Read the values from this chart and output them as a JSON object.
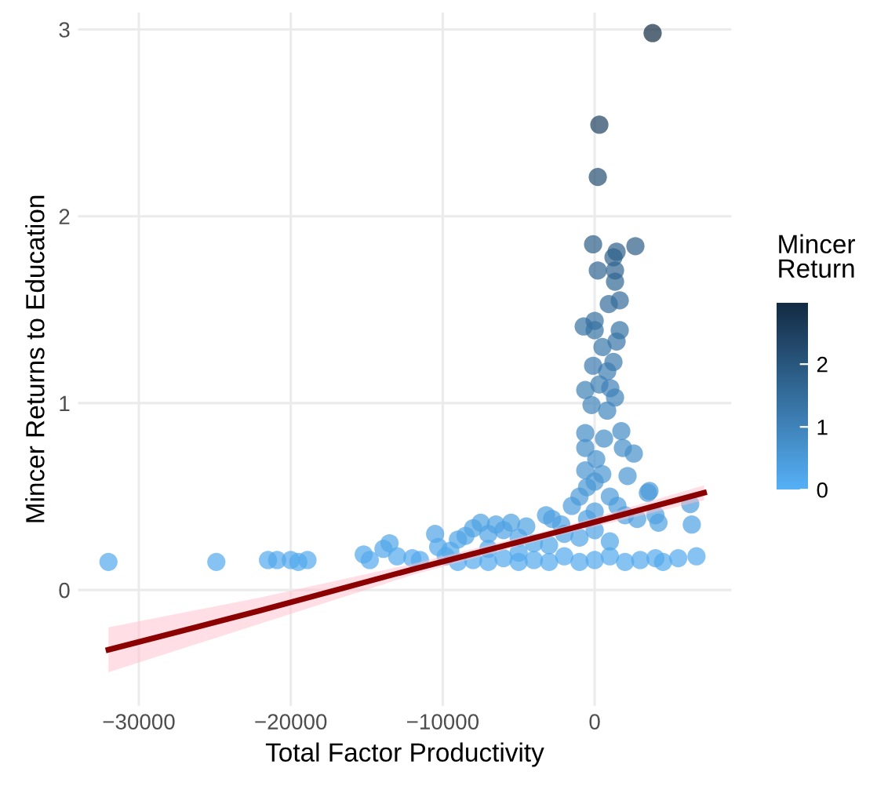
{
  "chart_data": {
    "type": "scatter",
    "xlabel": "Total Factor Productivity",
    "ylabel": "Mincer Returns to Education",
    "clabel": "Mincer\nReturn",
    "xlim": [
      -34000,
      9000
    ],
    "ylim": [
      -0.62,
      3.09
    ],
    "xticks": [
      {
        "value": -30000,
        "label": "−30000"
      },
      {
        "value": -20000,
        "label": "−20000"
      },
      {
        "value": -10000,
        "label": "−10000"
      },
      0
    ],
    "yticks": [
      0,
      1,
      2,
      3
    ],
    "clim": [
      0,
      2.98
    ],
    "cticks": [
      0,
      1,
      2
    ],
    "grid": true,
    "series": [
      {
        "marker": "circle",
        "colors": [
          "#132b43",
          "#1e4161",
          "#244e71",
          "#2c5e87",
          "#2d5e88",
          "#2d608a",
          "#2e618c",
          "#306490",
          "#306490",
          "#316793",
          "#336b99",
          "#346c9b",
          "#3672a2",
          "#3670a0",
          "#3773a3",
          "#3773a3",
          "#3875a7",
          "#3977a9",
          "#3b7aad",
          "#3b7bae",
          "#3c7cb0",
          "#3d80b5",
          "#3e80b6",
          "#3e81b6",
          "#3f83b9",
          "#4085bb",
          "#4086bd",
          "#438bc4",
          "#438bc4",
          "#448dc6",
          "#458fc9",
          "#458fc9",
          "#4690cb",
          "#4692cd",
          "#4894d0",
          "#4896d2",
          "#4a99d7",
          "#4c9cdb",
          "#4ea1e2",
          "#52a9ec",
          "#53aaee",
          "#53aaee",
          "#52aaed",
          "#52aaed",
          "#52aaed",
          "#53aaee",
          "#52aaed",
          "#52a8eb",
          "#52aaed",
          "#51a7ea",
          "#50a6e8",
          "#52a9ec",
          "#52a9ed",
          "#52aaed",
          "#4fa3e5",
          "#51a7e9",
          "#52a9ec",
          "#51a8ea",
          "#50a5e7",
          "#50a4e6",
          "#4fa2e3",
          "#4ea1e1",
          "#4fa3e5",
          "#4ea1e2",
          "#4fa3e4",
          "#4ea1e1",
          "#50a4e6",
          "#4ea2e2",
          "#50a6e8",
          "#4d9fdf",
          "#4da0e0",
          "#4ea1e2",
          "#4c9ddc",
          "#4b9ad9",
          "#4a98d6",
          "#4997d4",
          "#4895d2",
          "#4b9ad9",
          "#4c9ddc",
          "#4d9fdf",
          "#4da0e0",
          "#4a9ad8",
          "#4d9fdf",
          "#4ea1e1",
          "#52aaed",
          "#52a9ed",
          "#53aaee",
          "#52a9ed",
          "#53aaee",
          "#52aaed",
          "#53aaee",
          "#52a9ed",
          "#53aaee",
          "#52aaed",
          "#53aaee",
          "#52a9ec",
          "#53aaee",
          "#52aaed",
          "#52a9ec",
          "#53aaee",
          "#51a7ea",
          "#52a8eb",
          "#51a6e8",
          "#50a4e6",
          "#4fa3e4",
          "#50a5e7",
          "#4fa3e5",
          "#4d9ede",
          "#4da0e0"
        ],
        "x": [
          3814,
          309,
          206,
          -103,
          2680,
          1443,
          1237,
          206,
          1340,
          1340,
          1650,
          928,
          -722,
          0,
          0,
          1650,
          1443,
          515,
          1237,
          -103,
          825,
          309,
          1031,
          -619,
          1340,
          -206,
          825,
          -619,
          1753,
          619,
          -619,
          1856,
          2577,
          103,
          -619,
          2165,
          3608,
          6289,
          6392,
          6701,
          -32000,
          -24900,
          -21500,
          -20900,
          -20000,
          -19500,
          -18900,
          -15200,
          -14800,
          -13900,
          -13500,
          -13000,
          -12000,
          -11500,
          -10500,
          -10300,
          -9800,
          -9500,
          -9000,
          -8500,
          -8000,
          -7500,
          -7000,
          -6500,
          -6000,
          -5500,
          -5000,
          -4500,
          -4000,
          -3200,
          -2800,
          -2200,
          -1500,
          -1000,
          -500,
          0,
          500,
          1000,
          1500,
          2000,
          2800,
          3500,
          4000,
          4200,
          3000,
          4000,
          4500,
          5500,
          -9000,
          -8000,
          -7000,
          -6000,
          -5000,
          -4000,
          -3000,
          -2000,
          -1000,
          0,
          1000,
          2000,
          -7000,
          -5000,
          -3000,
          -1000,
          0,
          1000,
          -2000,
          0,
          -500
        ],
        "values": [
          2.98,
          2.49,
          2.21,
          1.85,
          1.84,
          1.81,
          1.78,
          1.71,
          1.71,
          1.65,
          1.55,
          1.53,
          1.41,
          1.44,
          1.39,
          1.39,
          1.33,
          1.3,
          1.22,
          1.2,
          1.17,
          1.1,
          1.08,
          1.07,
          1.03,
          0.99,
          0.96,
          0.84,
          0.85,
          0.81,
          0.76,
          0.76,
          0.73,
          0.7,
          0.64,
          0.61,
          0.53,
          0.46,
          0.35,
          0.18,
          0.15,
          0.15,
          0.16,
          0.16,
          0.16,
          0.15,
          0.16,
          0.19,
          0.16,
          0.22,
          0.25,
          0.18,
          0.17,
          0.16,
          0.3,
          0.23,
          0.18,
          0.21,
          0.27,
          0.29,
          0.33,
          0.36,
          0.3,
          0.35,
          0.32,
          0.36,
          0.28,
          0.34,
          0.25,
          0.4,
          0.38,
          0.35,
          0.45,
          0.5,
          0.55,
          0.58,
          0.62,
          0.5,
          0.45,
          0.4,
          0.38,
          0.52,
          0.4,
          0.36,
          0.16,
          0.17,
          0.15,
          0.17,
          0.15,
          0.16,
          0.15,
          0.17,
          0.15,
          0.16,
          0.15,
          0.18,
          0.15,
          0.16,
          0.18,
          0.15,
          0.22,
          0.2,
          0.24,
          0.28,
          0.32,
          0.26,
          0.3,
          0.42,
          0.38
        ],
        "name": null
      },
      {
        "type": "line",
        "color": "#8b0000",
        "line_style": "solid",
        "marker": "none",
        "x": [
          -32000,
          -22000,
          -12000,
          -2000,
          7200
        ],
        "values": [
          -0.32,
          -0.11,
          0.11,
          0.32,
          0.52
        ],
        "lower": [
          -0.44,
          -0.18,
          0.08,
          0.3,
          0.48
        ],
        "upper": [
          -0.2,
          -0.04,
          0.14,
          0.34,
          0.56
        ]
      }
    ]
  }
}
